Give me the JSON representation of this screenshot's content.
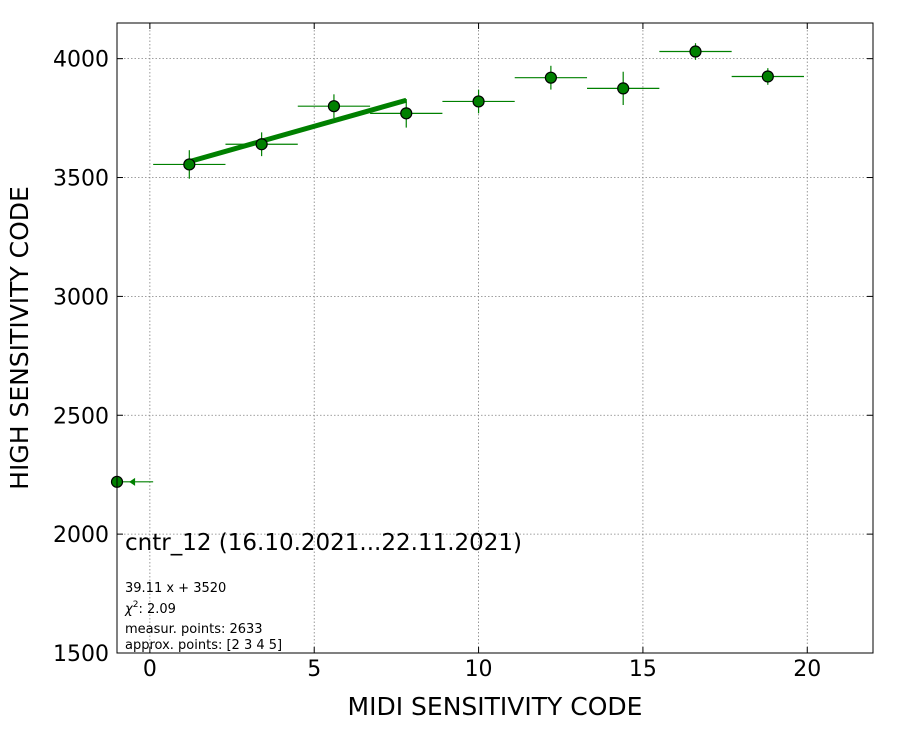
{
  "chart_data": {
    "type": "scatter",
    "title": "",
    "xlabel": "MIDI SENSITIVITY CODE",
    "ylabel": "HIGH SENSITIVITY CODE",
    "xlim": [
      -1,
      22
    ],
    "ylim": [
      1500,
      4150
    ],
    "x_ticks": [
      0,
      5,
      10,
      15,
      20
    ],
    "y_ticks": [
      1500,
      2000,
      2500,
      3000,
      3500,
      4000
    ],
    "grid": true,
    "colors": {
      "points": "#008000",
      "point_edge": "#000000",
      "fit_line": "#008000",
      "grid": "#808080"
    },
    "series": [
      {
        "points": [
          {
            "x": -1.0,
            "y": 2220,
            "xerr": 0,
            "yerr": 0
          },
          {
            "x": 1.2,
            "y": 3555,
            "xerr": 1.1,
            "yerr": 60
          },
          {
            "x": 3.4,
            "y": 3640,
            "xerr": 1.1,
            "yerr": 50
          },
          {
            "x": 5.6,
            "y": 3800,
            "xerr": 1.1,
            "yerr": 50
          },
          {
            "x": 7.8,
            "y": 3770,
            "xerr": 1.1,
            "yerr": 60
          },
          {
            "x": 10.0,
            "y": 3820,
            "xerr": 1.1,
            "yerr": 50
          },
          {
            "x": 12.2,
            "y": 3920,
            "xerr": 1.1,
            "yerr": 50
          },
          {
            "x": 14.4,
            "y": 3875,
            "xerr": 1.1,
            "yerr": 70
          },
          {
            "x": 16.6,
            "y": 4030,
            "xerr": 1.1,
            "yerr": 35
          },
          {
            "x": 18.8,
            "y": 3925,
            "xerr": 1.1,
            "yerr": 35
          }
        ]
      }
    ],
    "edge_marker": {
      "x": -0.45,
      "y": 2220,
      "x_to": 0.1
    },
    "fit": {
      "slope": 39.11,
      "intercept": 3520,
      "x_range": [
        1.2,
        7.8
      ]
    },
    "annotations": {
      "title": "cntr_12 (16.10.2021...22.11.2021)",
      "equation": "39.11 x + 3520",
      "chi2_symbol": "χ",
      "chi2_sup": "2",
      "chi2_value": ": 2.09",
      "measured": "measur. points: 2633",
      "approx": "approx. points: [2 3 4 5]"
    }
  }
}
